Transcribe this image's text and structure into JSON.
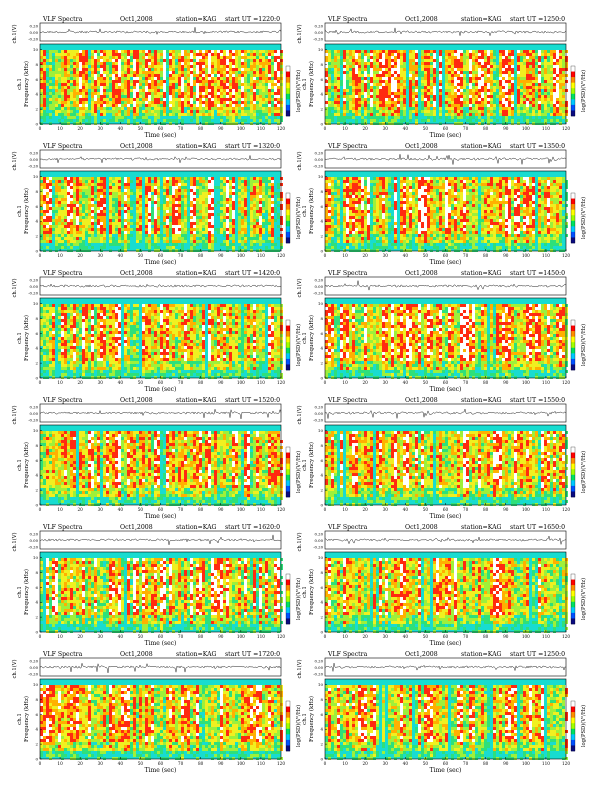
{
  "panel_header": {
    "title": "VLF Spectra",
    "date": "Oct1,2008",
    "station": "station=KAG",
    "start_prefix": "start UT =",
    "waveform_label": "ch.1(V)",
    "waveform_ticks": [
      "0.20",
      "0.00",
      "-0.20"
    ],
    "freq_label": "Frequency (kHz)",
    "ch_label": "ch.1",
    "freq_ticks": [
      "0",
      "2",
      "4",
      "6",
      "8",
      "10"
    ],
    "time_label": "Time (sec)",
    "time_ticks": [
      "0",
      "10",
      "20",
      "30",
      "40",
      "50",
      "60",
      "70",
      "80",
      "90",
      "100",
      "110",
      "120"
    ],
    "colorbar_label": "log(PSD)(V²/Hz)"
  },
  "colors": {
    "background_band": "#18dcd0",
    "colorbar": [
      "#0a0a80",
      "#0050ff",
      "#00c8ff",
      "#00e060",
      "#a0ff00",
      "#ffff00",
      "#ff8c00",
      "#ff0000",
      "#ffffff"
    ]
  },
  "chart_data": [
    {
      "type": "heatmap",
      "start_ut": "1220:0",
      "xlabel": "Time (sec)",
      "ylabel": "Frequency (kHz)",
      "xlim": [
        0,
        120
      ],
      "ylim": [
        0,
        10
      ],
      "colorbar": "log(PSD)(V²/Hz)"
    },
    {
      "type": "heatmap",
      "start_ut": "1250:0",
      "xlabel": "Time (sec)",
      "ylabel": "Frequency (kHz)",
      "xlim": [
        0,
        120
      ],
      "ylim": [
        0,
        10
      ],
      "colorbar": "log(PSD)(V²/Hz)"
    },
    {
      "type": "heatmap",
      "start_ut": "1320:0",
      "xlabel": "Time (sec)",
      "ylabel": "Frequency (kHz)",
      "xlim": [
        0,
        120
      ],
      "ylim": [
        0,
        10
      ],
      "colorbar": "log(PSD)(V²/Hz)"
    },
    {
      "type": "heatmap",
      "start_ut": "1350:0",
      "xlabel": "Time (sec)",
      "ylabel": "Frequency (kHz)",
      "xlim": [
        0,
        120
      ],
      "ylim": [
        0,
        10
      ],
      "colorbar": "log(PSD)(V²/Hz)"
    },
    {
      "type": "heatmap",
      "start_ut": "1420:0",
      "xlabel": "Time (sec)",
      "ylabel": "Frequency (kHz)",
      "xlim": [
        0,
        120
      ],
      "ylim": [
        0,
        10
      ],
      "colorbar": "log(PSD)(V²/Hz)"
    },
    {
      "type": "heatmap",
      "start_ut": "1450:0",
      "xlabel": "Time (sec)",
      "ylabel": "Frequency (kHz)",
      "xlim": [
        0,
        120
      ],
      "ylim": [
        0,
        10
      ],
      "colorbar": "log(PSD)(V²/Hz)"
    },
    {
      "type": "heatmap",
      "start_ut": "1520:0",
      "xlabel": "Time (sec)",
      "ylabel": "Frequency (kHz)",
      "xlim": [
        0,
        120
      ],
      "ylim": [
        0,
        10
      ],
      "colorbar": "log(PSD)(V²/Hz)"
    },
    {
      "type": "heatmap",
      "start_ut": "1550:0",
      "xlabel": "Time (sec)",
      "ylabel": "Frequency (kHz)",
      "xlim": [
        0,
        120
      ],
      "ylim": [
        0,
        10
      ],
      "colorbar": "log(PSD)(V²/Hz)"
    },
    {
      "type": "heatmap",
      "start_ut": "1620:0",
      "xlabel": "Time (sec)",
      "ylabel": "Frequency (kHz)",
      "xlim": [
        0,
        120
      ],
      "ylim": [
        0,
        10
      ],
      "colorbar": "log(PSD)(V²/Hz)"
    },
    {
      "type": "heatmap",
      "start_ut": "1650:0",
      "xlabel": "Time (sec)",
      "ylabel": "Frequency (kHz)",
      "xlim": [
        0,
        120
      ],
      "ylim": [
        0,
        10
      ],
      "colorbar": "log(PSD)(V²/Hz)"
    },
    {
      "type": "heatmap",
      "start_ut": "1720:0",
      "xlabel": "Time (sec)",
      "ylabel": "Frequency (kHz)",
      "xlim": [
        0,
        120
      ],
      "ylim": [
        0,
        10
      ],
      "colorbar": "log(PSD)(V²/Hz)"
    },
    {
      "type": "heatmap",
      "start_ut": "1250:0",
      "xlabel": "Time (sec)",
      "ylabel": "Frequency (kHz)",
      "xlim": [
        0,
        120
      ],
      "ylim": [
        0,
        10
      ],
      "colorbar": "log(PSD)(V²/Hz)"
    }
  ]
}
